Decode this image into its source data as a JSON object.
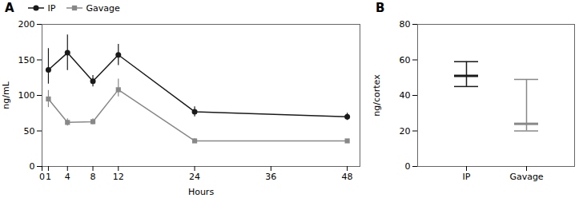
{
  "chart_data": [
    {
      "type": "line",
      "title": "A",
      "xlabel": "Hours",
      "ylabel": "ng/mL",
      "xlim": [
        0,
        50
      ],
      "ylim": [
        0,
        200
      ],
      "xticks": [
        0,
        1,
        4,
        8,
        12,
        24,
        36,
        48
      ],
      "yticks": [
        0,
        50,
        100,
        150,
        200
      ],
      "legend": "top",
      "series": [
        {
          "name": "IP",
          "color": "#1a1a1a",
          "marker": "circle",
          "x": [
            1,
            4,
            8,
            12,
            24,
            48
          ],
          "values": [
            136,
            160,
            120,
            157,
            77,
            70
          ],
          "yerr_lo": [
            20,
            25,
            8,
            15,
            7,
            5
          ],
          "yerr_hi": [
            30,
            25,
            8,
            15,
            7,
            5
          ]
        },
        {
          "name": "Gavage",
          "color": "#888888",
          "marker": "square",
          "x": [
            1,
            4,
            8,
            12,
            24,
            48
          ],
          "values": [
            95,
            62,
            63,
            108,
            36,
            36
          ],
          "yerr_lo": [
            12,
            5,
            4,
            10,
            3,
            2
          ],
          "yerr_hi": [
            12,
            5,
            4,
            15,
            3,
            2
          ]
        }
      ]
    },
    {
      "type": "errorbar",
      "title": "B",
      "ylabel": "ng/cortex",
      "categories": [
        "IP",
        "Gavage"
      ],
      "values": [
        51,
        24
      ],
      "yerr_lo": [
        6,
        4
      ],
      "yerr_hi": [
        8,
        25
      ],
      "colors": [
        "#1a1a1a",
        "#888888"
      ],
      "ylim": [
        0,
        80
      ],
      "yticks": [
        0,
        20,
        40,
        60,
        80
      ]
    }
  ]
}
